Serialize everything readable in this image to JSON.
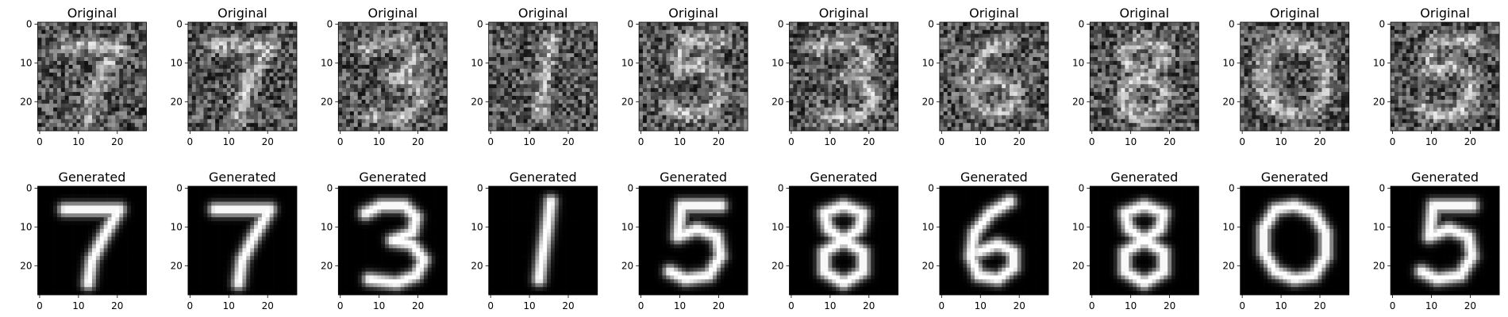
{
  "figure": {
    "rows": [
      {
        "title": "Original",
        "style": "noisy",
        "panels": [
          {
            "digit": "7"
          },
          {
            "digit": "7"
          },
          {
            "digit": "3"
          },
          {
            "digit": "1"
          },
          {
            "digit": "5"
          },
          {
            "digit": "3"
          },
          {
            "digit": "6"
          },
          {
            "digit": "8"
          },
          {
            "digit": "0"
          },
          {
            "digit": "5"
          }
        ]
      },
      {
        "title": "Generated",
        "style": "clean",
        "panels": [
          {
            "digit": "7"
          },
          {
            "digit": "7"
          },
          {
            "digit": "3"
          },
          {
            "digit": "1"
          },
          {
            "digit": "5"
          },
          {
            "digit": "8"
          },
          {
            "digit": "6"
          },
          {
            "digit": "8"
          },
          {
            "digit": "0"
          },
          {
            "digit": "5"
          }
        ]
      }
    ],
    "x_ticks": [
      "0",
      "10",
      "20"
    ],
    "y_ticks": [
      "0",
      "10",
      "20"
    ],
    "colormap": "gray",
    "image_size": "28x28"
  }
}
